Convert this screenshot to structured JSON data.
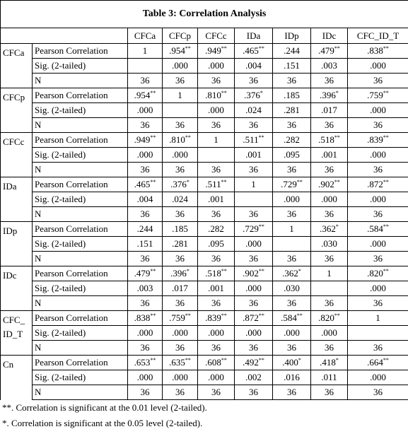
{
  "title": "Table 3: Correlation Analysis",
  "columns": [
    "CFCa",
    "CFCp",
    "CFCc",
    "IDa",
    "IDp",
    "IDc",
    "CFC_ID_T"
  ],
  "stat_labels": [
    "Pearson Correlation",
    "Sig. (2-tailed)",
    "N"
  ],
  "groups": [
    {
      "label": [
        "CFCa"
      ],
      "rows": [
        [
          "1",
          {
            "text": ".954",
            "sup": "**"
          },
          {
            "text": ".949",
            "sup": "**"
          },
          {
            "text": ".465",
            "sup": "**"
          },
          ".244",
          {
            "text": ".479",
            "sup": "**"
          },
          {
            "text": ".838",
            "sup": "**"
          }
        ],
        [
          null,
          ".000",
          ".000",
          ".004",
          ".151",
          ".003",
          ".000"
        ],
        [
          "36",
          "36",
          "36",
          "36",
          "36",
          "36",
          "36"
        ]
      ]
    },
    {
      "label": [
        "CFCp"
      ],
      "rows": [
        [
          {
            "text": ".954",
            "sup": "**"
          },
          "1",
          {
            "text": ".810",
            "sup": "**"
          },
          {
            "text": ".376",
            "sup": "*"
          },
          ".185",
          {
            "text": ".396",
            "sup": "*"
          },
          {
            "text": ".759",
            "sup": "**"
          }
        ],
        [
          ".000",
          null,
          ".000",
          ".024",
          ".281",
          ".017",
          ".000"
        ],
        [
          "36",
          "36",
          "36",
          "36",
          "36",
          "36",
          "36"
        ]
      ]
    },
    {
      "label": [
        "CFCc"
      ],
      "rows": [
        [
          {
            "text": ".949",
            "sup": "**"
          },
          {
            "text": ".810",
            "sup": "**"
          },
          "1",
          {
            "text": ".511",
            "sup": "**"
          },
          ".282",
          {
            "text": ".518",
            "sup": "**"
          },
          {
            "text": ".839",
            "sup": "**"
          }
        ],
        [
          ".000",
          ".000",
          null,
          ".001",
          ".095",
          ".001",
          ".000"
        ],
        [
          "36",
          "36",
          "36",
          "36",
          "36",
          "36",
          "36"
        ]
      ]
    },
    {
      "label": [
        "IDa"
      ],
      "rows": [
        [
          {
            "text": ".465",
            "sup": "**"
          },
          {
            "text": ".376",
            "sup": "*"
          },
          {
            "text": ".511",
            "sup": "**"
          },
          "1",
          {
            "text": ".729",
            "sup": "**"
          },
          {
            "text": ".902",
            "sup": "**"
          },
          {
            "text": ".872",
            "sup": "**"
          }
        ],
        [
          ".004",
          ".024",
          ".001",
          null,
          ".000",
          ".000",
          ".000"
        ],
        [
          "36",
          "36",
          "36",
          "36",
          "36",
          "36",
          "36"
        ]
      ]
    },
    {
      "label": [
        "IDp"
      ],
      "rows": [
        [
          ".244",
          ".185",
          ".282",
          {
            "text": ".729",
            "sup": "**"
          },
          "1",
          {
            "text": ".362",
            "sup": "*"
          },
          {
            "text": ".584",
            "sup": "**"
          }
        ],
        [
          ".151",
          ".281",
          ".095",
          ".000",
          null,
          ".030",
          ".000"
        ],
        [
          "36",
          "36",
          "36",
          "36",
          "36",
          "36",
          "36"
        ]
      ]
    },
    {
      "label": [
        "IDc"
      ],
      "rows": [
        [
          {
            "text": ".479",
            "sup": "**"
          },
          {
            "text": ".396",
            "sup": "*"
          },
          {
            "text": ".518",
            "sup": "**"
          },
          {
            "text": ".902",
            "sup": "**"
          },
          {
            "text": ".362",
            "sup": "*"
          },
          "1",
          {
            "text": ".820",
            "sup": "**"
          }
        ],
        [
          ".003",
          ".017",
          ".001",
          ".000",
          ".030",
          null,
          ".000"
        ],
        [
          "36",
          "36",
          "36",
          "36",
          "36",
          "36",
          "36"
        ]
      ]
    },
    {
      "label": [
        "CFC_",
        "ID_T"
      ],
      "rows": [
        [
          {
            "text": ".838",
            "sup": "**"
          },
          {
            "text": ".759",
            "sup": "**"
          },
          {
            "text": ".839",
            "sup": "**"
          },
          {
            "text": ".872",
            "sup": "**"
          },
          {
            "text": ".584",
            "sup": "**"
          },
          {
            "text": ".820",
            "sup": "**"
          },
          "1"
        ],
        [
          ".000",
          ".000",
          ".000",
          ".000",
          ".000",
          ".000",
          null
        ],
        [
          "36",
          "36",
          "36",
          "36",
          "36",
          "36",
          "36"
        ]
      ]
    },
    {
      "label": [
        "Cn"
      ],
      "rows": [
        [
          {
            "text": ".653",
            "sup": "**"
          },
          {
            "text": ".635",
            "sup": "**"
          },
          {
            "text": ".608",
            "sup": "**"
          },
          {
            "text": ".492",
            "sup": "**"
          },
          {
            "text": ".400",
            "sup": "*"
          },
          {
            "text": ".418",
            "sup": "*"
          },
          {
            "text": ".664",
            "sup": "**"
          }
        ],
        [
          ".000",
          ".000",
          ".000",
          ".002",
          ".016",
          ".011",
          ".000"
        ],
        [
          "36",
          "36",
          "36",
          "36",
          "36",
          "36",
          "36"
        ]
      ]
    }
  ],
  "footnotes": [
    "**. Correlation is significant at the 0.01 level (2-tailed).",
    "*. Correlation is significant at the 0.05 level (2-tailed)."
  ]
}
